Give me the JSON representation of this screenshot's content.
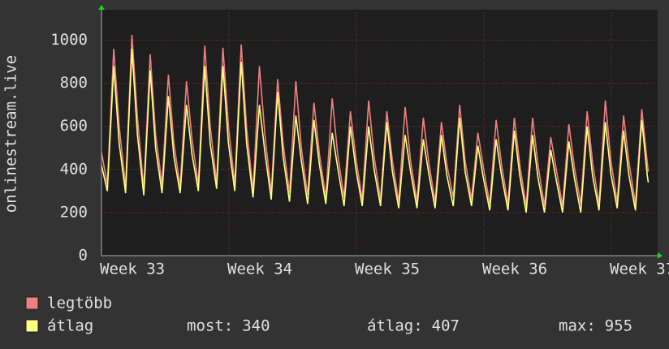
{
  "chart_data": {
    "type": "line",
    "y_label": "onlinestream.live",
    "x": [
      33.0,
      33.046,
      33.096,
      33.139,
      33.189,
      33.239,
      33.282,
      33.332,
      33.382,
      33.425,
      33.475,
      33.525,
      33.568,
      33.617,
      33.667,
      33.71,
      33.76,
      33.81,
      33.853,
      33.903,
      33.953,
      33.996,
      34.046,
      34.096,
      34.139,
      34.189,
      34.239,
      34.282,
      34.332,
      34.382,
      34.425,
      34.475,
      34.525,
      34.568,
      34.617,
      34.667,
      34.71,
      34.76,
      34.81,
      34.853,
      34.903,
      34.953,
      34.996,
      35.046,
      35.096,
      35.139,
      35.189,
      35.239,
      35.282,
      35.332,
      35.382,
      35.425,
      35.475,
      35.525,
      35.568,
      35.617,
      35.667,
      35.71,
      35.76,
      35.81,
      35.853,
      35.903,
      35.953,
      35.996,
      36.046,
      36.096,
      36.139,
      36.189,
      36.239,
      36.282,
      36.332,
      36.382,
      36.425,
      36.475,
      36.525,
      36.568,
      36.617,
      36.667,
      36.71,
      36.76,
      36.81,
      36.853,
      36.903,
      36.953,
      36.996,
      37.046,
      37.096,
      37.139,
      37.189,
      37.239,
      37.282,
      37.29
    ],
    "series": [
      {
        "name": "legtöbb",
        "color": "#f08080",
        "values": [
          480,
          330,
          960,
          600,
          320,
          1025,
          640,
          310,
          935,
          560,
          330,
          840,
          520,
          320,
          810,
          540,
          330,
          975,
          600,
          340,
          965,
          600,
          330,
          980,
          590,
          300,
          880,
          560,
          290,
          820,
          520,
          290,
          810,
          500,
          280,
          710,
          470,
          270,
          730,
          470,
          270,
          670,
          450,
          260,
          720,
          460,
          260,
          670,
          440,
          250,
          690,
          440,
          250,
          640,
          430,
          250,
          620,
          420,
          270,
          700,
          440,
          260,
          570,
          410,
          240,
          630,
          420,
          240,
          640,
          420,
          230,
          640,
          420,
          230,
          550,
          400,
          230,
          610,
          410,
          240,
          670,
          430,
          240,
          720,
          440,
          250,
          650,
          430,
          240,
          680,
          430,
          390
        ]
      },
      {
        "name": "átlag",
        "color": "#ffff80",
        "values": [
          420,
          300,
          880,
          520,
          290,
          960,
          560,
          280,
          860,
          500,
          290,
          740,
          460,
          290,
          700,
          470,
          300,
          880,
          520,
          310,
          880,
          520,
          300,
          900,
          520,
          270,
          700,
          480,
          260,
          760,
          460,
          250,
          650,
          440,
          240,
          630,
          420,
          240,
          570,
          410,
          230,
          600,
          400,
          230,
          600,
          400,
          230,
          620,
          390,
          220,
          560,
          390,
          220,
          540,
          380,
          220,
          560,
          370,
          230,
          640,
          390,
          230,
          510,
          360,
          210,
          540,
          370,
          210,
          580,
          370,
          200,
          560,
          360,
          200,
          490,
          350,
          200,
          530,
          360,
          200,
          600,
          370,
          210,
          620,
          380,
          220,
          580,
          370,
          210,
          630,
          370,
          340
        ]
      }
    ],
    "xlim": [
      33,
      37.363
    ],
    "xticks": [
      {
        "value": 33,
        "label": "Week 33"
      },
      {
        "value": 34,
        "label": "Week 34"
      },
      {
        "value": 35,
        "label": "Week 35"
      },
      {
        "value": 36,
        "label": "Week 36"
      },
      {
        "value": 37,
        "label": "Week 37"
      }
    ],
    "ylim": [
      0,
      1130
    ],
    "yticks": [
      0,
      200,
      400,
      600,
      800,
      1000
    ],
    "grid": true,
    "stats": [
      {
        "label": "most:",
        "value": 340
      },
      {
        "label": "átlag:",
        "value": 407
      },
      {
        "label": "max:",
        "value": 955
      }
    ]
  }
}
